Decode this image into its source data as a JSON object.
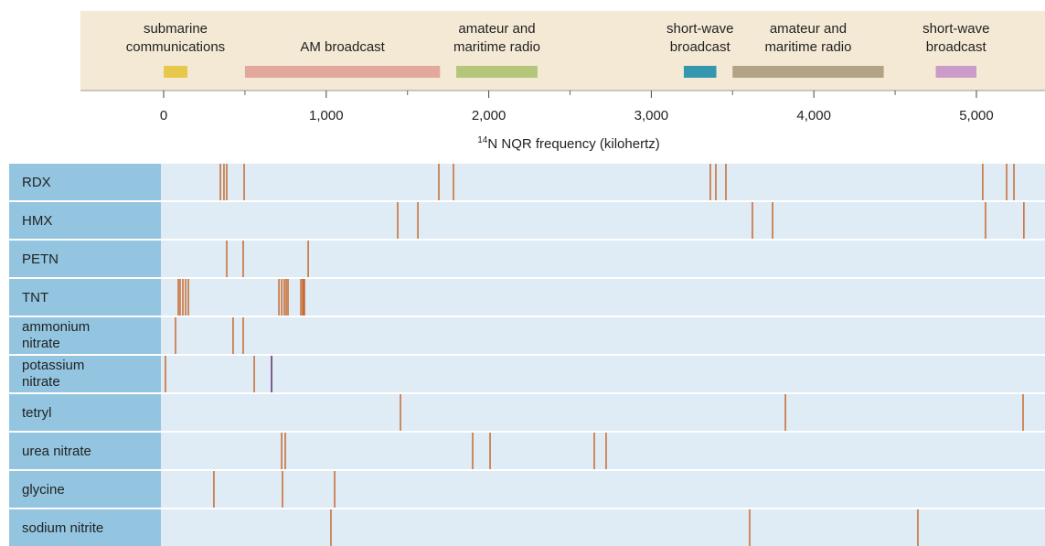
{
  "chart_data": {
    "type": "event",
    "xlabel_sup": "14",
    "xlabel": "N NQR frequency (kilohertz)",
    "xlim": [
      -17,
      5422
    ],
    "xticks": [
      0,
      {
        "value": 1000,
        "label": "1,000"
      },
      {
        "value": 2000,
        "label": "2,000"
      },
      {
        "value": 3000,
        "label": "3,000"
      },
      {
        "value": 4000,
        "label": "4,000"
      },
      {
        "value": 5000,
        "label": "5,000"
      }
    ],
    "xticks_minor": [
      500,
      1500,
      2500,
      3500,
      4500
    ],
    "bands": [
      {
        "name": [
          "submarine",
          "communications"
        ],
        "range": [
          0,
          146
        ],
        "color": "#e8c84a"
      },
      {
        "name": [
          "AM broadcast"
        ],
        "range": [
          500,
          1700
        ],
        "color": "#e2a89c"
      },
      {
        "name": [
          "amateur and",
          "maritime radio"
        ],
        "range": [
          1800,
          2300
        ],
        "color": "#b3c67a"
      },
      {
        "name": [
          "short-wave",
          "broadcast"
        ],
        "range": [
          3200,
          3400
        ],
        "color": "#3497ad"
      },
      {
        "name": [
          "amateur and",
          "maritime radio"
        ],
        "range": [
          3500,
          4430
        ],
        "color": "#b2a286"
      },
      {
        "name": [
          "short-wave",
          "broadcast"
        ],
        "range": [
          4750,
          5000
        ],
        "color": "#cc9cc8"
      }
    ],
    "series": [
      {
        "name": [
          "RDX"
        ],
        "color": "#c8692e",
        "values": [
          349,
          371,
          388,
          495,
          1693,
          1783,
          3363,
          3397,
          3459,
          5039,
          5186,
          5231
        ]
      },
      {
        "name": [
          "HMX"
        ],
        "color": "#c8692e",
        "values": [
          1440,
          1564,
          3622,
          3746,
          5056,
          5292
        ]
      },
      {
        "name": [
          "PETN"
        ],
        "color": "#c8692e",
        "values": [
          388,
          489,
          889
        ]
      },
      {
        "name": [
          "TNT"
        ],
        "color": "#c8692e",
        "values": [
          90,
          101,
          118,
          135,
          152,
          709,
          726,
          742,
          754,
          765,
          844,
          855,
          861,
          866
        ]
      },
      {
        "name": [
          "ammonium",
          "nitrate"
        ],
        "color": "#c8692e",
        "values": [
          73,
          427,
          489
        ]
      },
      {
        "name": [
          "potassium",
          "nitrate"
        ],
        "colors": [
          "#c8692e",
          "#c8692e",
          "#5b2a6e"
        ],
        "values": [
          11,
          557,
          664
        ]
      },
      {
        "name": [
          "tetryl"
        ],
        "color": "#c8692e",
        "values": [
          1457,
          3825,
          5287
        ]
      },
      {
        "name": [
          "urea nitrate"
        ],
        "color": "#c8692e",
        "values": [
          726,
          748,
          1901,
          2008,
          2649,
          2722
        ]
      },
      {
        "name": [
          "glycine"
        ],
        "color": "#c8692e",
        "values": [
          309,
          731,
          1052
        ]
      },
      {
        "name": [
          "sodium nitrite"
        ],
        "color": "#c8692e",
        "values": [
          1029,
          3605,
          4640
        ]
      }
    ]
  }
}
